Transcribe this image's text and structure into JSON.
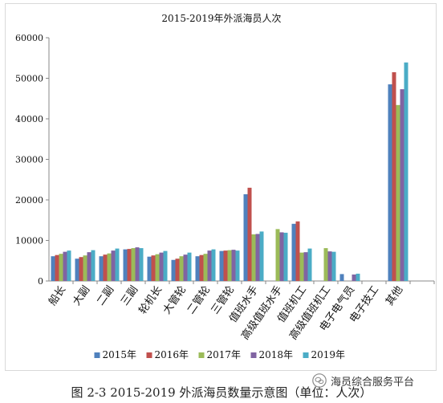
{
  "chart_data": {
    "type": "bar",
    "title": "2015-2019年外派海员人次",
    "categories": [
      "船长",
      "大副",
      "二副",
      "三副",
      "轮机长",
      "大管轮",
      "二管轮",
      "三管轮",
      "值班水手",
      "高级值班水手",
      "值班机工",
      "高级值班机工",
      "电子电气员",
      "电子技工",
      "其他"
    ],
    "series": [
      {
        "name": "2015年",
        "color": "#4f81bd",
        "values": [
          6100,
          5500,
          6100,
          7800,
          6000,
          5200,
          6100,
          7400,
          21400,
          null,
          14100,
          null,
          1700,
          null,
          48500
        ]
      },
      {
        "name": "2016年",
        "color": "#c0504d",
        "values": [
          6400,
          5900,
          6500,
          7900,
          6300,
          5500,
          6400,
          7500,
          23000,
          null,
          14700,
          null,
          null,
          null,
          51500
        ]
      },
      {
        "name": "2017年",
        "color": "#9bbb59",
        "values": [
          6700,
          6300,
          6800,
          8100,
          6600,
          6100,
          6700,
          7600,
          11500,
          12800,
          7000,
          8100,
          null,
          null,
          43400
        ]
      },
      {
        "name": "2018年",
        "color": "#8064a2",
        "values": [
          7200,
          7100,
          7500,
          8300,
          7000,
          6500,
          7500,
          7700,
          11600,
          12000,
          7100,
          7300,
          1600,
          null,
          47300
        ]
      },
      {
        "name": "2019年",
        "color": "#4bacc6",
        "values": [
          7500,
          7600,
          8000,
          8100,
          7400,
          7000,
          7800,
          7500,
          12200,
          11900,
          8000,
          7200,
          1800,
          null,
          53900
        ]
      }
    ],
    "ylim": [
      0,
      60000
    ],
    "yticks": [
      0,
      10000,
      20000,
      30000,
      40000,
      50000,
      60000
    ],
    "legend_position": "bottom",
    "grid": false
  },
  "caption": "图 2-3 2015-2019 外派海员数量示意图（单位：人次）",
  "watermark": {
    "text": "海员综合服务平台",
    "icon": "wechat-icon"
  }
}
